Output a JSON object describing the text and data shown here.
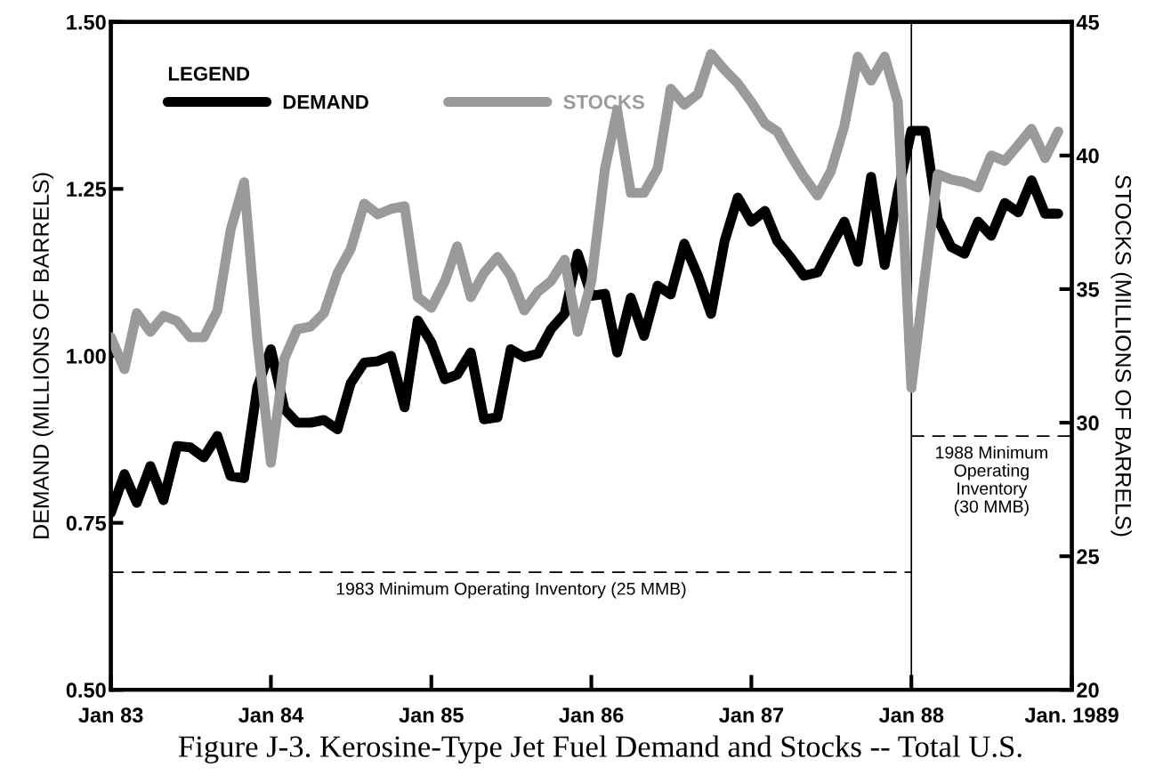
{
  "chart_data": {
    "type": "line",
    "title": "Figure J-3. Kerosine-Type Jet Fuel Demand and Stocks -- Total U.S.",
    "ylabel": "DEMAND (MILLIONS OF BARRELS)",
    "y2label": "STOCKS (MILLIONS OF BARRELS)",
    "legend_title": "LEGEND",
    "legend": "top left",
    "grid": false,
    "x": [
      "1983-01",
      "1983-02",
      "1983-03",
      "1983-04",
      "1983-05",
      "1983-06",
      "1983-07",
      "1983-08",
      "1983-09",
      "1983-10",
      "1983-11",
      "1983-12",
      "1984-01",
      "1984-02",
      "1984-03",
      "1984-04",
      "1984-05",
      "1984-06",
      "1984-07",
      "1984-08",
      "1984-09",
      "1984-10",
      "1984-11",
      "1984-12",
      "1985-01",
      "1985-02",
      "1985-03",
      "1985-04",
      "1985-05",
      "1985-06",
      "1985-07",
      "1985-08",
      "1985-09",
      "1985-10",
      "1985-11",
      "1985-12",
      "1986-01",
      "1986-02",
      "1986-03",
      "1986-04",
      "1986-05",
      "1986-06",
      "1986-07",
      "1986-08",
      "1986-09",
      "1986-10",
      "1986-11",
      "1986-12",
      "1987-01",
      "1987-02",
      "1987-03",
      "1987-04",
      "1987-05",
      "1987-06",
      "1987-07",
      "1987-08",
      "1987-09",
      "1987-10",
      "1987-11",
      "1987-12",
      "1988-01",
      "1988-02",
      "1988-03",
      "1988-04",
      "1988-05",
      "1988-06",
      "1988-07",
      "1988-08",
      "1988-09",
      "1988-10",
      "1988-11",
      "1988-12"
    ],
    "series": [
      {
        "name": "DEMAND",
        "color": "#000000",
        "axis": "y",
        "values": [
          0.765,
          0.823,
          0.78,
          0.835,
          0.784,
          0.865,
          0.863,
          0.848,
          0.88,
          0.82,
          0.817,
          0.953,
          1.01,
          0.92,
          0.9,
          0.9,
          0.904,
          0.89,
          0.959,
          0.99,
          0.992,
          1.0,
          0.923,
          1.053,
          1.02,
          0.965,
          0.972,
          1.005,
          0.905,
          0.908,
          1.01,
          0.998,
          1.003,
          1.04,
          1.063,
          1.153,
          1.09,
          1.093,
          1.005,
          1.087,
          1.03,
          1.105,
          1.092,
          1.168,
          1.12,
          1.063,
          1.172,
          1.237,
          1.201,
          1.217,
          1.172,
          1.147,
          1.12,
          1.125,
          1.163,
          1.201,
          1.141,
          1.268,
          1.136,
          1.244,
          1.337,
          1.337,
          1.205,
          1.163,
          1.153,
          1.201,
          1.18,
          1.229,
          1.215,
          1.263,
          1.213,
          1.213
        ]
      },
      {
        "name": "STOCKS",
        "color": "#9a9a9a",
        "axis": "y2",
        "values": [
          33.2,
          32.0,
          34.1,
          33.4,
          34.0,
          33.8,
          33.2,
          33.2,
          34.2,
          37.2,
          39.0,
          33.1,
          28.5,
          32.4,
          33.5,
          33.6,
          34.1,
          35.6,
          36.5,
          38.2,
          37.8,
          38.0,
          38.1,
          34.7,
          34.3,
          35.3,
          36.6,
          34.7,
          35.6,
          36.2,
          35.5,
          34.2,
          34.9,
          35.3,
          36.1,
          33.4,
          35.3,
          39.5,
          41.7,
          38.6,
          38.6,
          39.5,
          42.5,
          41.9,
          42.3,
          43.8,
          43.2,
          42.7,
          42.0,
          41.2,
          40.9,
          40.0,
          39.2,
          38.5,
          39.4,
          41.1,
          43.7,
          42.8,
          43.7,
          42.0,
          31.3,
          35.5,
          39.3,
          39.1,
          39.0,
          38.8,
          40.0,
          39.8,
          40.4,
          41.0,
          39.9,
          40.9
        ]
      },
      {
        "color": "#000000",
        "axis": "y2",
        "line_style": "dashed",
        "x": [
          "1983-01",
          "1988-01"
        ],
        "values": [
          24.4,
          24.4
        ]
      },
      {
        "color": "#000000",
        "axis": "y2",
        "line_style": "dashed",
        "x": [
          "1988-01",
          "1989-01"
        ],
        "values": [
          29.5,
          29.5
        ]
      }
    ],
    "ref_lines": [
      {
        "axis": "x",
        "value": "1988-01",
        "color": "#000000",
        "line_style": "solid"
      }
    ],
    "annotations": [
      "1983 Minimum Operating Inventory (25 MMB)",
      "1988 Minimum\nOperating\nInventory\n(30 MMB)"
    ],
    "xlim": [
      "1983-01",
      "1989-01"
    ],
    "xticks": [
      {
        "value": "1983-01",
        "label": "Jan 83"
      },
      {
        "value": "1984-01",
        "label": "Jan 84"
      },
      {
        "value": "1985-01",
        "label": "Jan 85"
      },
      {
        "value": "1986-01",
        "label": "Jan 86"
      },
      {
        "value": "1987-01",
        "label": "Jan 87"
      },
      {
        "value": "1988-01",
        "label": "Jan 88"
      },
      {
        "value": "1989-01",
        "label": "Jan. 1989"
      }
    ],
    "ylim": [
      0.5,
      1.5
    ],
    "yticks": [
      {
        "value": 0.5,
        "label": "0.50"
      },
      {
        "value": 0.75,
        "label": "0.75"
      },
      {
        "value": 1.0,
        "label": "1.00"
      },
      {
        "value": 1.25,
        "label": "1.25"
      },
      {
        "value": 1.5,
        "label": "1.50"
      }
    ],
    "y2lim": [
      20,
      45
    ],
    "y2ticks": [
      20,
      25,
      30,
      35,
      40,
      45
    ]
  }
}
